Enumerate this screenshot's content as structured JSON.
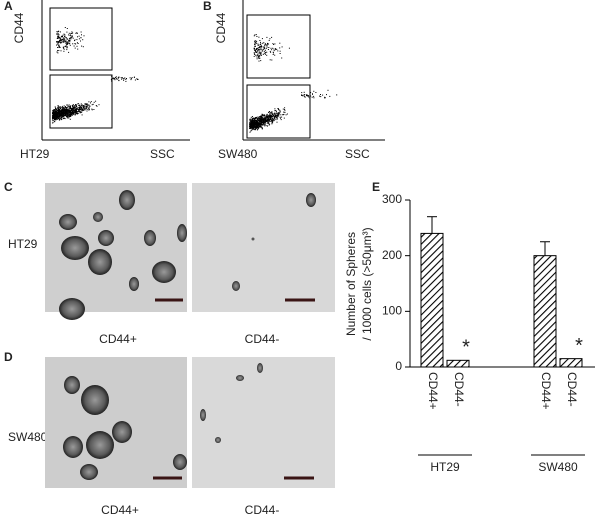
{
  "panels": {
    "a": {
      "letter": "A",
      "y_label": "CD44",
      "cell_line": "HT29",
      "x_label": "SSC"
    },
    "b": {
      "letter": "B",
      "y_label": "CD44",
      "cell_line": "SW480",
      "x_label": "SSC"
    },
    "c": {
      "letter": "C",
      "row_label": "HT29",
      "left_caption": "CD44+",
      "right_caption": "CD44-"
    },
    "d": {
      "letter": "D",
      "row_label": "SW480",
      "left_caption": "CD44+",
      "right_caption": "CD44-"
    },
    "e": {
      "letter": "E"
    }
  },
  "chart_data": {
    "type": "bar",
    "y_label": [
      "Number of Spheres",
      "/ 1000 cells (>50μm³)"
    ],
    "categories": [
      "CD44+",
      "CD44-",
      "CD44+",
      "CD44-"
    ],
    "groups": [
      "HT29",
      "SW480"
    ],
    "values": [
      240,
      12,
      200,
      15
    ],
    "errors": [
      30,
      null,
      25,
      null
    ],
    "significance": [
      null,
      "*",
      null,
      "*"
    ],
    "ylim": [
      0,
      300
    ],
    "yticks": [
      0,
      100,
      200,
      300
    ],
    "color": "#000000"
  }
}
